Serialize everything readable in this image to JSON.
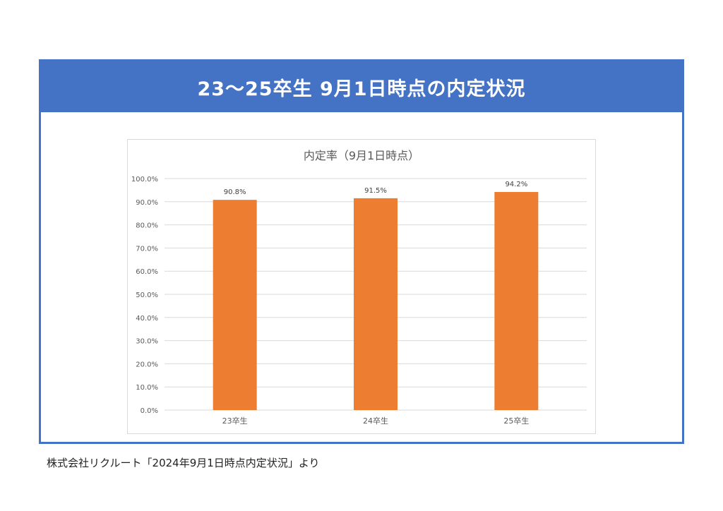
{
  "header": {
    "title": "23～25卒生 9月1日時点の内定状況"
  },
  "chart_data": {
    "type": "bar",
    "title": "内定率（9月1日時点）",
    "categories": [
      "23卒生",
      "24卒生",
      "25卒生"
    ],
    "series": [
      {
        "values": [
          90.8,
          91.5,
          94.2
        ]
      }
    ],
    "data_labels": [
      "90.8%",
      "91.5%",
      "94.2%"
    ],
    "ylim": [
      0,
      100
    ],
    "yticks": [
      "0.0%",
      "10.0%",
      "20.0%",
      "30.0%",
      "40.0%",
      "50.0%",
      "60.0%",
      "70.0%",
      "80.0%",
      "90.0%",
      "100.0%"
    ],
    "grid": true,
    "legend": "none",
    "bar_color": "#ed7d31",
    "grid_color": "#d9d9d9"
  },
  "footer": {
    "source": "株式会社リクルート「2024年9月1日時点内定状況」より"
  },
  "colors": {
    "header_bg": "#4472c4",
    "header_text": "#ffffff"
  }
}
